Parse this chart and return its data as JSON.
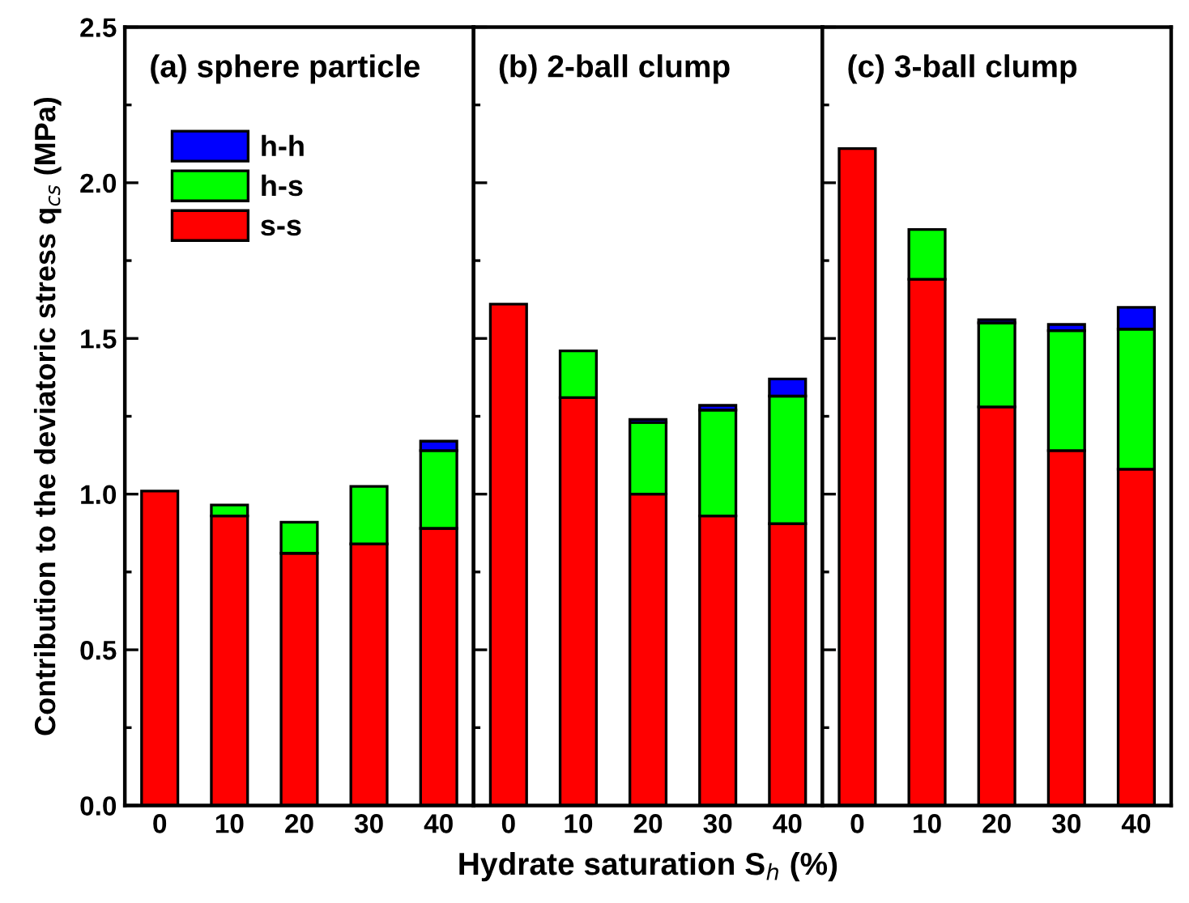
{
  "chart_data": [
    {
      "type": "bar",
      "stacked": true,
      "title": "(a) sphere particle",
      "ylabel": "Contribution to the deviatoric stress q$_{cs}$ (MPa)",
      "categories": [
        "0",
        "10",
        "20",
        "30",
        "40"
      ],
      "ylim": [
        0,
        2.5
      ],
      "yticks": [
        {
          "value": 0,
          "label": "0.0"
        },
        0.5,
        {
          "value": 1,
          "label": "1.0"
        },
        1.5,
        {
          "value": 2,
          "label": "2.0"
        },
        2.5
      ],
      "legend": "top left",
      "series": [
        {
          "name": "s-s",
          "color": "#ff0000",
          "values": [
            1.01,
            0.93,
            0.81,
            0.84,
            0.89
          ]
        },
        {
          "name": "h-s",
          "color": "#00ff00",
          "values": [
            null,
            0.035,
            0.1,
            0.185,
            0.25
          ]
        },
        {
          "name": "h-h",
          "color": "#0000ff",
          "values": [
            null,
            null,
            null,
            null,
            0.03
          ]
        }
      ]
    },
    {
      "type": "bar",
      "stacked": true,
      "title": "(b) 2-ball clump",
      "xlabel": "Hydrate saturation S$_{h}$ (%)",
      "categories": [
        "0",
        "10",
        "20",
        "30",
        "40"
      ],
      "ylim": [
        0,
        2.5
      ],
      "yticks": [
        {
          "value": 0,
          "label": null
        },
        {
          "value": 0.5,
          "label": null
        },
        {
          "value": 1,
          "label": null
        },
        {
          "value": 1.5,
          "label": null
        },
        {
          "value": 2,
          "label": null
        },
        {
          "value": 2.5,
          "label": null
        }
      ],
      "tick_labels": "x",
      "series": [
        {
          "color": "#ff0000",
          "values": [
            1.61,
            1.31,
            1.0,
            0.93,
            0.905
          ]
        },
        {
          "color": "#00ff00",
          "values": [
            null,
            0.15,
            0.23,
            0.34,
            0.41
          ]
        },
        {
          "color": "#0000ff",
          "values": [
            null,
            null,
            0.01,
            0.015,
            0.055
          ]
        }
      ]
    },
    {
      "type": "bar",
      "stacked": true,
      "title": "(c) 3-ball clump",
      "categories": [
        "0",
        "10",
        "20",
        "30",
        "40"
      ],
      "ylim": [
        0,
        2.5
      ],
      "yticks": [
        {
          "value": 0,
          "label": null
        },
        {
          "value": 0.5,
          "label": null
        },
        {
          "value": 1,
          "label": null
        },
        {
          "value": 1.5,
          "label": null
        },
        {
          "value": 2,
          "label": null
        },
        {
          "value": 2.5,
          "label": null
        }
      ],
      "tick_labels": "x",
      "series": [
        {
          "color": "#ff0000",
          "values": [
            2.11,
            1.69,
            1.28,
            1.14,
            1.08
          ]
        },
        {
          "color": "#00ff00",
          "values": [
            null,
            0.16,
            0.27,
            0.385,
            0.45
          ]
        },
        {
          "color": "#0000ff",
          "values": [
            null,
            null,
            0.01,
            0.02,
            0.07
          ]
        }
      ]
    }
  ]
}
